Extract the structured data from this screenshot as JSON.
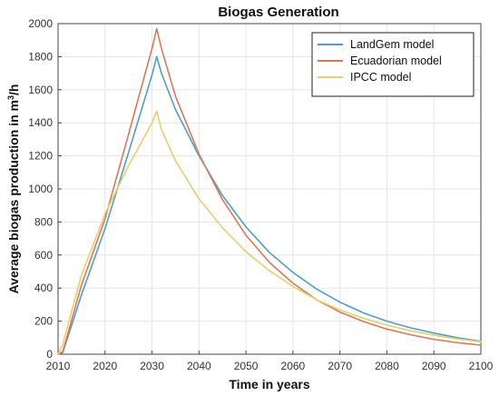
{
  "chart_data": {
    "type": "line",
    "title": "Biogas Generation",
    "xlabel": "Time in years",
    "ylabel_main": "Average biogas production in m",
    "ylabel_sup": "3",
    "ylabel_tail": "/h",
    "xlim": [
      2010,
      2100
    ],
    "ylim": [
      0,
      2000
    ],
    "xticks": [
      2010,
      2020,
      2030,
      2040,
      2050,
      2060,
      2070,
      2080,
      2090,
      2100
    ],
    "yticks": [
      0,
      200,
      400,
      600,
      800,
      1000,
      1200,
      1400,
      1600,
      1800,
      2000
    ],
    "grid": true,
    "legend_position": "top-right",
    "series": [
      {
        "name": "LandGem model",
        "color": "#4f9fc8",
        "x": [
          2010,
          2011,
          2015,
          2020,
          2025,
          2030,
          2031,
          2032,
          2035,
          2040,
          2045,
          2050,
          2055,
          2060,
          2065,
          2070,
          2075,
          2080,
          2085,
          2090,
          2095,
          2100
        ],
        "y": [
          0,
          10,
          360,
          760,
          1220,
          1690,
          1800,
          1700,
          1480,
          1200,
          960,
          770,
          615,
          495,
          395,
          315,
          250,
          200,
          160,
          128,
          100,
          78
        ]
      },
      {
        "name": "Ecuadorian model",
        "color": "#d9795a",
        "x": [
          2010,
          2011,
          2015,
          2020,
          2025,
          2030,
          2031,
          2032,
          2035,
          2040,
          2045,
          2050,
          2055,
          2060,
          2065,
          2070,
          2075,
          2080,
          2085,
          2090,
          2095,
          2100
        ],
        "y": [
          0,
          15,
          420,
          820,
          1330,
          1850,
          1970,
          1850,
          1560,
          1210,
          935,
          720,
          555,
          430,
          330,
          255,
          198,
          152,
          118,
          90,
          70,
          55
        ]
      },
      {
        "name": "IPCC model",
        "color": "#e8cf6a",
        "x": [
          2010,
          2011,
          2015,
          2020,
          2025,
          2030,
          2031,
          2032,
          2035,
          2040,
          2045,
          2050,
          2055,
          2060,
          2065,
          2070,
          2075,
          2080,
          2085,
          2090,
          2095,
          2100
        ],
        "y": [
          0,
          60,
          480,
          850,
          1140,
          1400,
          1470,
          1360,
          1170,
          940,
          765,
          620,
          505,
          410,
          330,
          268,
          218,
          176,
          142,
          115,
          93,
          75
        ]
      }
    ]
  }
}
